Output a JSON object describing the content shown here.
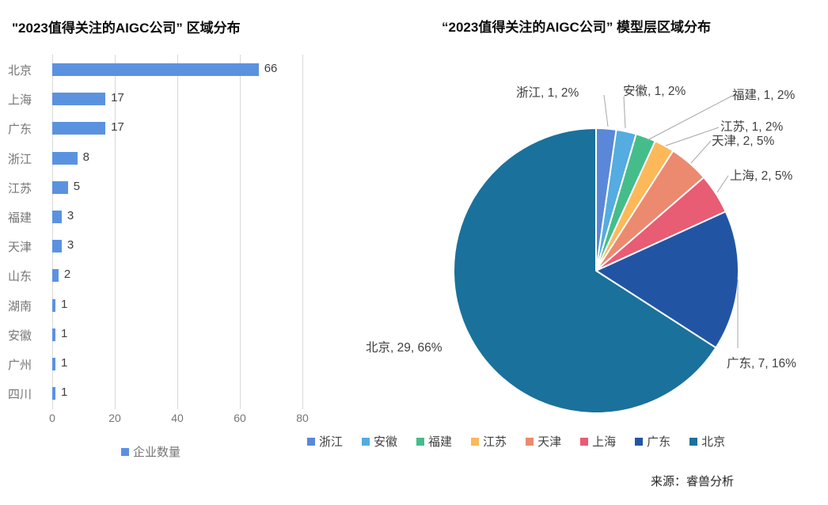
{
  "page": {
    "background": "#ffffff"
  },
  "chart_data": [
    {
      "type": "bar",
      "orientation": "horizontal",
      "title": "\"2023值得关注的AIGC公司” 区域分布",
      "categories": [
        "北京",
        "上海",
        "广东",
        "浙江",
        "江苏",
        "福建",
        "天津",
        "山东",
        "湖南",
        "安徽",
        "广州",
        "四川"
      ],
      "values": [
        66,
        17,
        17,
        8,
        5,
        3,
        3,
        2,
        1,
        1,
        1,
        1
      ],
      "series_label": "企业数量",
      "bar_color": "#5b92e0",
      "xlabel": "",
      "ylabel": "",
      "xlim": [
        0,
        80
      ],
      "x_ticks": [
        "0",
        "20",
        "40",
        "60",
        "80"
      ],
      "grid": "vertical-on",
      "legend_position": "bottom",
      "value_labels": "shown-at-bar-end"
    },
    {
      "type": "pie",
      "title": "“2023值得关注的AIGC公司” 模型层区域分布",
      "total": 44,
      "slices": [
        {
          "name": "浙江",
          "value": 1,
          "pct": "2%",
          "color": "#5b87d9"
        },
        {
          "name": "安徽",
          "value": 1,
          "pct": "2%",
          "color": "#54ace0"
        },
        {
          "name": "福建",
          "value": 1,
          "pct": "2%",
          "color": "#45bd8b"
        },
        {
          "name": "江苏",
          "value": 1,
          "pct": "2%",
          "color": "#fdb85a"
        },
        {
          "name": "天津",
          "value": 2,
          "pct": "5%",
          "color": "#eb8a6e"
        },
        {
          "name": "上海",
          "value": 2,
          "pct": "5%",
          "color": "#e85c74"
        },
        {
          "name": "广东",
          "value": 7,
          "pct": "16%",
          "color": "#2155a4"
        },
        {
          "name": "北京",
          "value": 29,
          "pct": "66%",
          "color": "#1a719c"
        }
      ],
      "label_format": "名称, 数量, 百分比",
      "legend_position": "bottom",
      "leader_line_color": "#a6a6a6"
    }
  ],
  "footer": {
    "source_label": "来源：睿兽分析"
  }
}
